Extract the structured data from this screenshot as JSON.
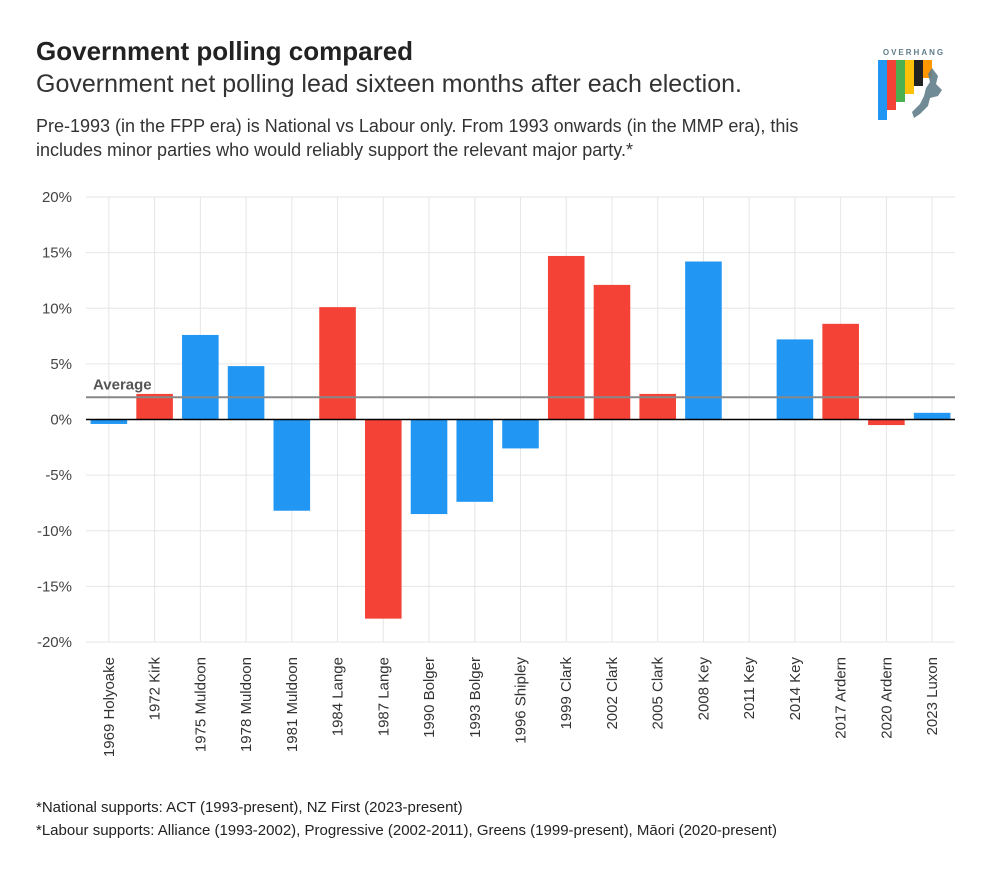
{
  "header": {
    "title": "Government polling compared",
    "subtitle": "Government net polling lead sixteen months after each election.",
    "description": "Pre-1993 (in the FPP era) is National vs Labour only. From 1993 onwards (in the MMP era), this includes minor parties who would reliably support the relevant major party.*"
  },
  "logo": {
    "text": "OVERHANG",
    "bar_colors": [
      "#2196f3",
      "#f44336",
      "#4caf50",
      "#ffc107",
      "#222222",
      "#ff9800"
    ],
    "map_color": "#607d8b"
  },
  "colors": {
    "national": "#2196f3",
    "labour": "#f44336",
    "grid": "#e6e6e6",
    "average_line": "#888888",
    "zero_line": "#000000"
  },
  "chart_data": {
    "type": "bar",
    "title": "Government polling compared",
    "xlabel": "",
    "ylabel": "",
    "ylim": [
      -20,
      20
    ],
    "yticks": [
      20,
      15,
      10,
      5,
      0,
      -5,
      -10,
      -15,
      -20
    ],
    "ytick_labels": [
      "20%",
      "15%",
      "10%",
      "5%",
      "0%",
      "-5%",
      "-10%",
      "-15%",
      "-20%"
    ],
    "categories": [
      "1969 Holyoake",
      "1972 Kirk",
      "1975 Muldoon",
      "1978 Muldoon",
      "1981 Muldoon",
      "1984 Lange",
      "1987 Lange",
      "1990 Bolger",
      "1993 Bolger",
      "1996 Shipley",
      "1999 Clark",
      "2002 Clark",
      "2005 Clark",
      "2008 Key",
      "2011 Key",
      "2014 Key",
      "2017 Ardern",
      "2020 Ardern",
      "2023 Luxon"
    ],
    "values": [
      -0.4,
      2.3,
      7.6,
      4.8,
      -8.2,
      10.1,
      -17.9,
      -8.5,
      -7.4,
      -2.6,
      14.7,
      12.1,
      2.3,
      14.2,
      0.0,
      7.2,
      8.6,
      -0.5,
      0.6
    ],
    "parties": [
      "National",
      "Labour",
      "National",
      "National",
      "National",
      "Labour",
      "Labour",
      "National",
      "National",
      "National",
      "Labour",
      "Labour",
      "Labour",
      "National",
      "National",
      "National",
      "Labour",
      "Labour",
      "National"
    ],
    "average": {
      "label": "Average",
      "value": 2.0
    },
    "grid": true
  },
  "footnotes": [
    "*National supports: ACT (1993-present), NZ First (2023-present)",
    "*Labour supports: Alliance (1993-2002), Progressive (2002-2011), Greens (1999-present), Māori (2020-present)"
  ]
}
